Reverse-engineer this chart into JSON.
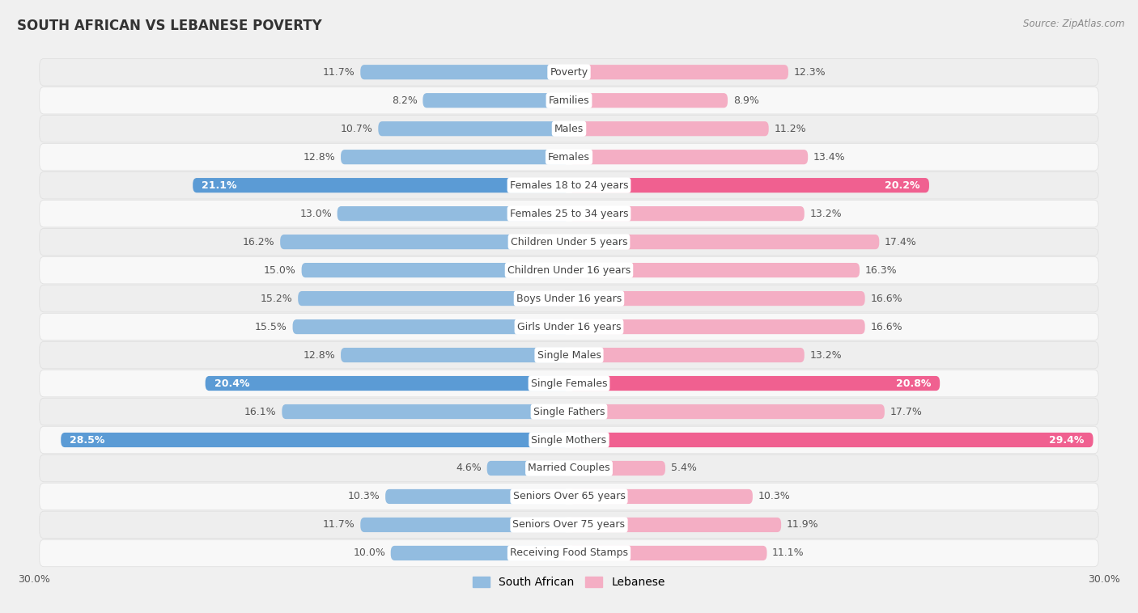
{
  "title": "SOUTH AFRICAN VS LEBANESE POVERTY",
  "source": "Source: ZipAtlas.com",
  "categories": [
    "Poverty",
    "Families",
    "Males",
    "Females",
    "Females 18 to 24 years",
    "Females 25 to 34 years",
    "Children Under 5 years",
    "Children Under 16 years",
    "Boys Under 16 years",
    "Girls Under 16 years",
    "Single Males",
    "Single Females",
    "Single Fathers",
    "Single Mothers",
    "Married Couples",
    "Seniors Over 65 years",
    "Seniors Over 75 years",
    "Receiving Food Stamps"
  ],
  "south_african": [
    11.7,
    8.2,
    10.7,
    12.8,
    21.1,
    13.0,
    16.2,
    15.0,
    15.2,
    15.5,
    12.8,
    20.4,
    16.1,
    28.5,
    4.6,
    10.3,
    11.7,
    10.0
  ],
  "lebanese": [
    12.3,
    8.9,
    11.2,
    13.4,
    20.2,
    13.2,
    17.4,
    16.3,
    16.6,
    16.6,
    13.2,
    20.8,
    17.7,
    29.4,
    5.4,
    10.3,
    11.9,
    11.1
  ],
  "sa_color_normal": "#92bce0",
  "sa_color_highlight": "#5b9bd5",
  "lb_color_normal": "#f4aec4",
  "lb_color_highlight": "#f06090",
  "axis_max": 30.0,
  "bar_height": 0.52,
  "row_bg_even": "#eeeeee",
  "row_bg_odd": "#f8f8f8",
  "row_border": "#dddddd",
  "bg_color": "#f0f0f0",
  "legend_sa": "South African",
  "legend_lb": "Lebanese",
  "highlight_threshold": 20.0,
  "label_fontsize": 9.0,
  "cat_fontsize": 9.0,
  "title_fontsize": 12,
  "source_fontsize": 8.5
}
